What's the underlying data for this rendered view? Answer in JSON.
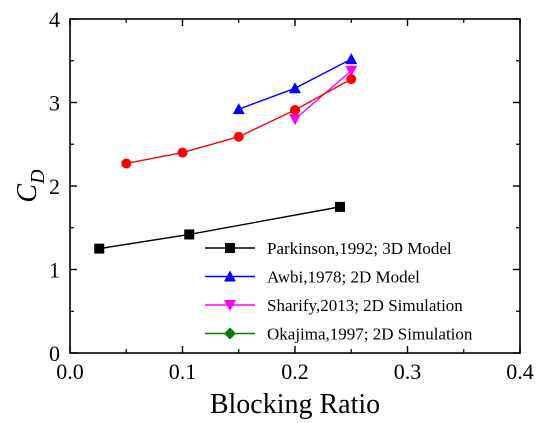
{
  "chart_data": {
    "type": "line",
    "xlabel": "Blocking Ratio",
    "ylabel": {
      "main": "C",
      "sub": "D"
    },
    "xlim": [
      0.0,
      0.4
    ],
    "ylim": [
      0,
      4
    ],
    "x_ticks": [
      "0.0",
      "0.1",
      "0.2",
      "0.3",
      "0.4"
    ],
    "y_ticks": [
      "0",
      "1",
      "2",
      "3",
      "4"
    ],
    "grid": false,
    "legend_position": "bottom-right",
    "series": [
      {
        "name": "Parkinson,1992; 3D Model",
        "color": "#000000",
        "marker": "square",
        "points": [
          [
            0.026,
            1.25
          ],
          [
            0.106,
            1.42
          ],
          [
            0.24,
            1.75
          ]
        ]
      },
      {
        "name": "Awbi,1978; 2D Model",
        "color": "#0000ff",
        "marker": "triangle-up",
        "points": [
          [
            0.15,
            2.92
          ],
          [
            0.2,
            3.17
          ],
          [
            0.25,
            3.52
          ]
        ]
      },
      {
        "name": "Sharify,2013; 2D Simulation",
        "color": "#ff00ff",
        "marker": "triangle-down",
        "points": [
          [
            0.2,
            2.8
          ],
          [
            0.25,
            3.38
          ]
        ]
      },
      {
        "name": "Okajima,1997; 2D Simulation",
        "color": "#008000",
        "marker": "diamond",
        "points": []
      },
      {
        "name": "",
        "color": "#ff0000",
        "marker": "circle",
        "points": [
          [
            0.05,
            2.27
          ],
          [
            0.1,
            2.4
          ],
          [
            0.15,
            2.59
          ],
          [
            0.2,
            2.91
          ],
          [
            0.25,
            3.28
          ]
        ]
      }
    ]
  }
}
